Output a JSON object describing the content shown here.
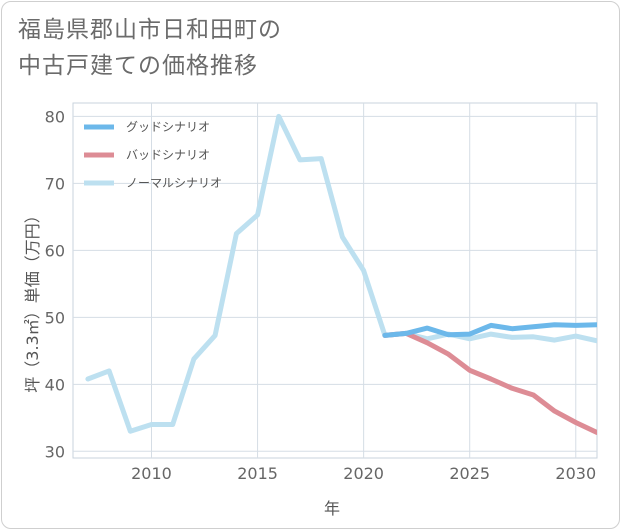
{
  "title_lines": [
    "福島県郡山市日和田町の",
    "中古戸建ての価格推移"
  ],
  "chart_data": {
    "type": "line",
    "xlabel": "年",
    "ylabel": "坪（3.3㎡）単価（万円）",
    "xlim": [
      2006.3,
      2031
    ],
    "ylim": [
      29,
      82
    ],
    "x_ticks": [
      2010,
      2015,
      2020,
      2025,
      2030
    ],
    "y_ticks": [
      30,
      40,
      50,
      60,
      70,
      80
    ],
    "grid": true,
    "legend_position": "top-left",
    "series": [
      {
        "name": "グッドシナリオ",
        "color": "#6cb8ea",
        "x": [
          2021,
          2022,
          2023,
          2024,
          2025,
          2026,
          2027,
          2028,
          2029,
          2030,
          2031
        ],
        "values": [
          47.3,
          47.6,
          48.4,
          47.4,
          47.5,
          48.8,
          48.3,
          48.6,
          48.9,
          48.8,
          48.9
        ]
      },
      {
        "name": "バッドシナリオ",
        "color": "#dd8c95",
        "x": [
          2021,
          2022,
          2023,
          2024,
          2025,
          2026,
          2027,
          2028,
          2029,
          2030,
          2031
        ],
        "values": [
          47.3,
          47.6,
          46.2,
          44.5,
          42.1,
          40.8,
          39.4,
          38.4,
          36.0,
          34.3,
          32.8
        ]
      },
      {
        "name": "ノーマルシナリオ",
        "color": "#bde0f0",
        "x": [
          2007,
          2008,
          2009,
          2010,
          2011,
          2012,
          2013,
          2014,
          2015,
          2016,
          2017,
          2018,
          2019,
          2020,
          2021,
          2022,
          2023,
          2024,
          2025,
          2026,
          2027,
          2028,
          2029,
          2030,
          2031
        ],
        "values": [
          40.8,
          42.0,
          33.0,
          34.0,
          34.0,
          43.8,
          47.3,
          62.5,
          65.3,
          80.0,
          73.5,
          73.7,
          62.0,
          57.0,
          47.3,
          47.6,
          46.8,
          47.5,
          46.8,
          47.5,
          47.0,
          47.1,
          46.6,
          47.2,
          46.5
        ]
      }
    ]
  }
}
